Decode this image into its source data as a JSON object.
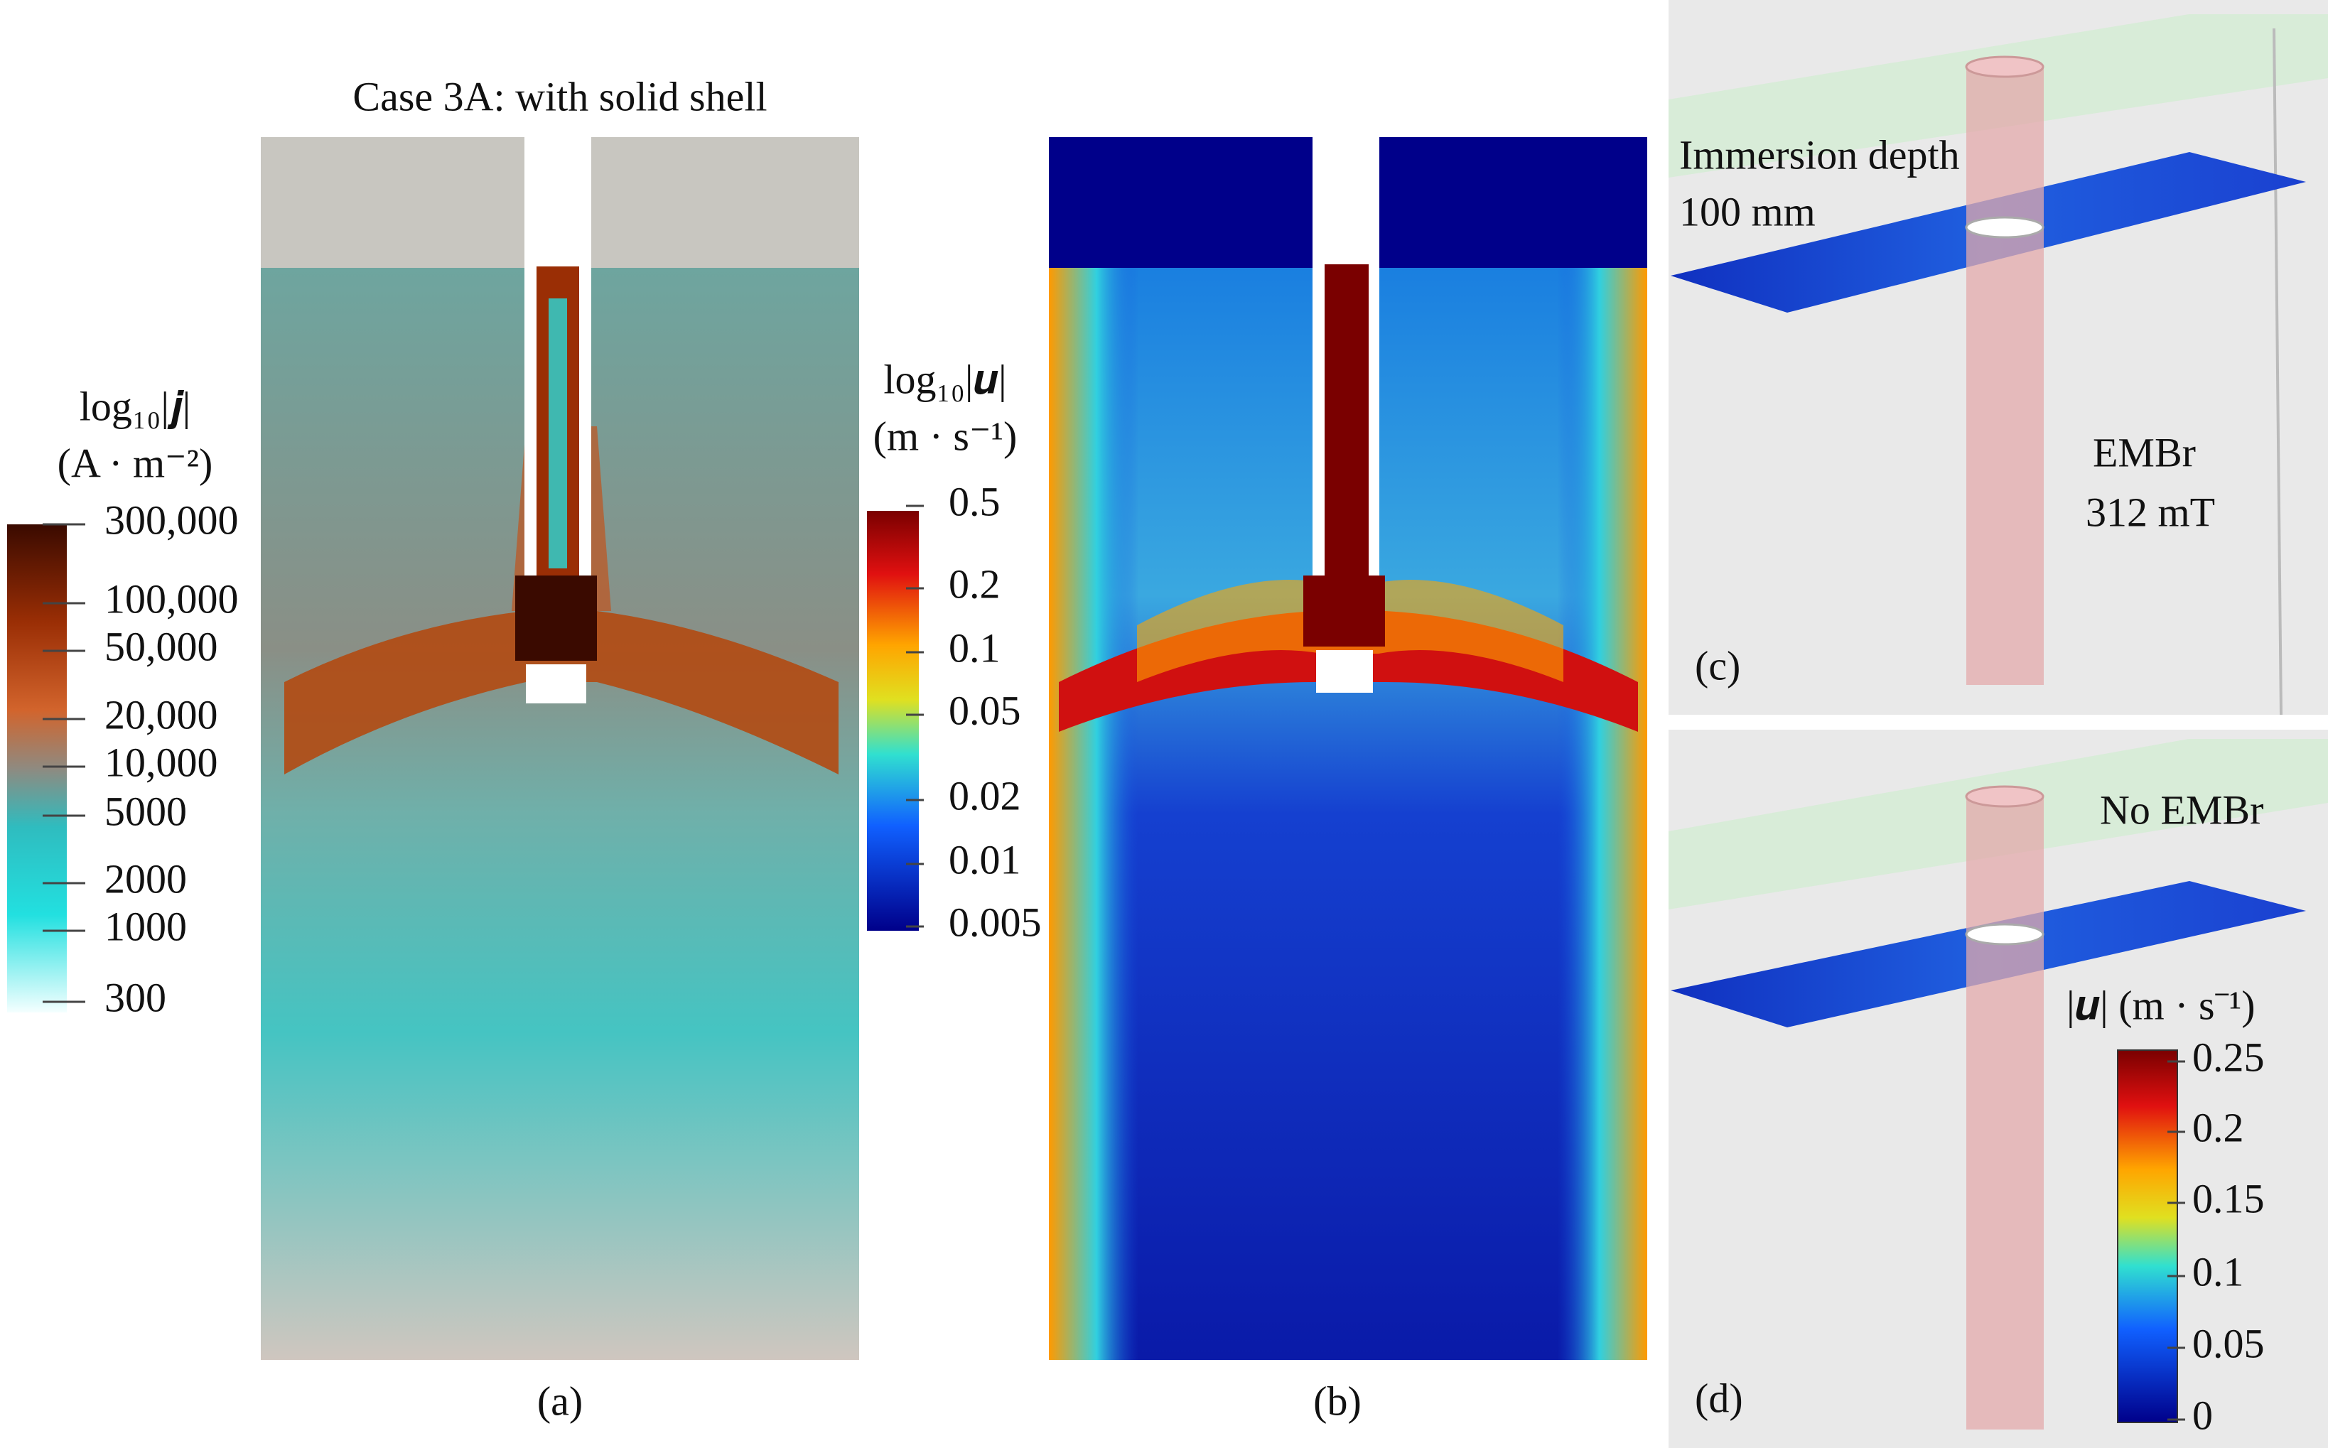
{
  "panel_a": {
    "caption": "Case 3A: with solid shell",
    "label": "(a)",
    "colorbar": {
      "title": "log₁₀|𝒋|",
      "unit": "(A · m⁻²)",
      "ticks": [
        "300,000",
        "100,000",
        "50,000",
        "20,000",
        "10,000",
        "5000",
        "2000",
        "1000",
        "300"
      ]
    }
  },
  "panel_b": {
    "label": "(b)",
    "colorbar": {
      "title": "log₁₀|𝒖|",
      "unit": "(m · s⁻¹)",
      "ticks": [
        "0.5",
        "0.2",
        "0.1",
        "0.05",
        "0.02",
        "0.01",
        "0.005"
      ]
    }
  },
  "panel_c": {
    "label": "(c)",
    "annotations": [
      "Immersion depth",
      "100 mm",
      "EMBr",
      "312 mT"
    ]
  },
  "panel_d": {
    "label": "(d)",
    "annotations": [
      "No EMBr"
    ],
    "colorbar": {
      "title": "|𝒖| (m · s⁻¹)",
      "ticks": [
        "0.25",
        "0.2",
        "0.15",
        "0.1",
        "0.05",
        "0"
      ]
    }
  }
}
